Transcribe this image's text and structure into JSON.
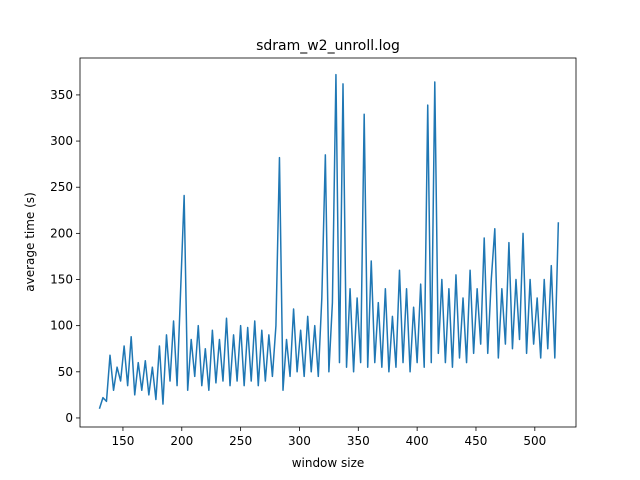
{
  "chart_data": {
    "type": "line",
    "title": "sdram_w2_unroll.log",
    "x_label": "window size",
    "y_label": "average time (s)",
    "x": [
      130,
      133,
      136,
      139,
      142,
      145,
      148,
      151,
      154,
      157,
      160,
      163,
      166,
      169,
      172,
      175,
      178,
      181,
      184,
      187,
      190,
      193,
      196,
      199,
      202,
      205,
      208,
      211,
      214,
      217,
      220,
      223,
      226,
      229,
      232,
      235,
      238,
      241,
      244,
      247,
      250,
      253,
      256,
      259,
      262,
      265,
      268,
      271,
      274,
      277,
      280,
      283,
      286,
      289,
      292,
      295,
      298,
      301,
      304,
      307,
      310,
      313,
      316,
      319,
      322,
      325,
      328,
      331,
      334,
      337,
      340,
      343,
      346,
      349,
      352,
      355,
      358,
      361,
      364,
      367,
      370,
      373,
      376,
      379,
      382,
      385,
      388,
      391,
      394,
      397,
      400,
      403,
      406,
      409,
      412,
      415,
      418,
      421,
      424,
      427,
      430,
      433,
      436,
      439,
      442,
      445,
      448,
      451,
      454,
      457,
      460,
      463,
      466,
      469,
      472,
      475,
      478,
      481,
      484,
      487,
      490,
      493,
      496,
      499,
      502,
      505,
      508,
      511,
      514,
      517,
      520
    ],
    "series": [
      {
        "name": "average time",
        "color": "#1f77b4",
        "values": [
          10,
          22,
          18,
          68,
          30,
          55,
          40,
          78,
          35,
          88,
          25,
          60,
          30,
          62,
          25,
          55,
          20,
          78,
          15,
          90,
          40,
          105,
          35,
          138,
          241,
          30,
          85,
          45,
          100,
          35,
          75,
          30,
          95,
          38,
          85,
          40,
          108,
          35,
          90,
          40,
          100,
          35,
          98,
          40,
          105,
          35,
          95,
          40,
          90,
          45,
          100,
          282,
          30,
          85,
          45,
          118,
          50,
          95,
          45,
          110,
          50,
          100,
          45,
          130,
          285,
          50,
          125,
          372,
          60,
          362,
          55,
          140,
          50,
          130,
          60,
          329,
          55,
          170,
          60,
          125,
          55,
          140,
          50,
          110,
          55,
          160,
          60,
          140,
          50,
          120,
          60,
          145,
          55,
          339,
          60,
          364,
          70,
          150,
          60,
          140,
          55,
          155,
          65,
          130,
          60,
          160,
          70,
          140,
          80,
          195,
          70,
          150,
          205,
          65,
          140,
          80,
          190,
          75,
          150,
          85,
          200,
          70,
          150,
          80,
          130,
          65,
          150,
          75,
          165,
          65,
          212
        ]
      }
    ],
    "xlim": [
      113.5,
      535
    ],
    "ylim": [
      -9.8,
      390
    ],
    "xticks": [
      150,
      200,
      250,
      300,
      350,
      400,
      450,
      500
    ],
    "yticks": [
      0,
      50,
      100,
      150,
      200,
      250,
      300,
      350
    ]
  }
}
